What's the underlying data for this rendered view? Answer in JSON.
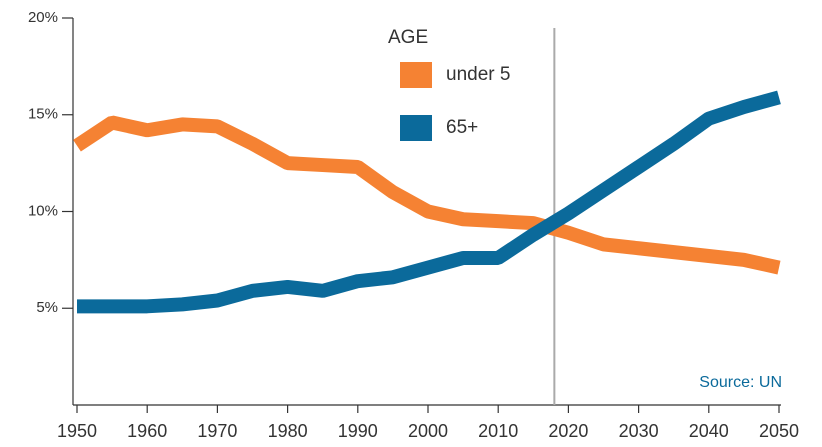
{
  "chart_data": {
    "type": "line",
    "legend_title": "AGE",
    "source": "Source: UN",
    "x": [
      1950,
      1955,
      1960,
      1965,
      1970,
      1975,
      1980,
      1985,
      1990,
      1995,
      2000,
      2005,
      2010,
      2015,
      2020,
      2025,
      2030,
      2035,
      2040,
      2045,
      2050
    ],
    "series": [
      {
        "name": "under 5",
        "color": "#f58233",
        "values": [
          13.4,
          14.6,
          14.2,
          14.5,
          14.4,
          13.5,
          12.5,
          12.4,
          12.3,
          11.0,
          10.0,
          9.6,
          9.5,
          9.4,
          8.9,
          8.3,
          8.1,
          7.9,
          7.7,
          7.5,
          7.1
        ]
      },
      {
        "name": "65+",
        "color": "#0b6a9b",
        "values": [
          5.1,
          5.1,
          5.1,
          5.2,
          5.4,
          5.9,
          6.1,
          5.9,
          6.4,
          6.6,
          7.1,
          7.6,
          7.6,
          8.8,
          9.9,
          11.1,
          12.3,
          13.5,
          14.8,
          15.4,
          15.9
        ]
      }
    ],
    "reference_line_x": 2018,
    "xlim": [
      1950,
      2050
    ],
    "xticks": [
      1950,
      1960,
      1970,
      1980,
      1990,
      2000,
      2010,
      2020,
      2030,
      2040,
      2050
    ],
    "ylim": [
      0,
      20
    ],
    "yticks": [
      {
        "value": 5,
        "label": "5%"
      },
      {
        "value": 10,
        "label": "10%"
      },
      {
        "value": 15,
        "label": "15%"
      },
      {
        "value": 20,
        "label": "20%"
      }
    ]
  }
}
